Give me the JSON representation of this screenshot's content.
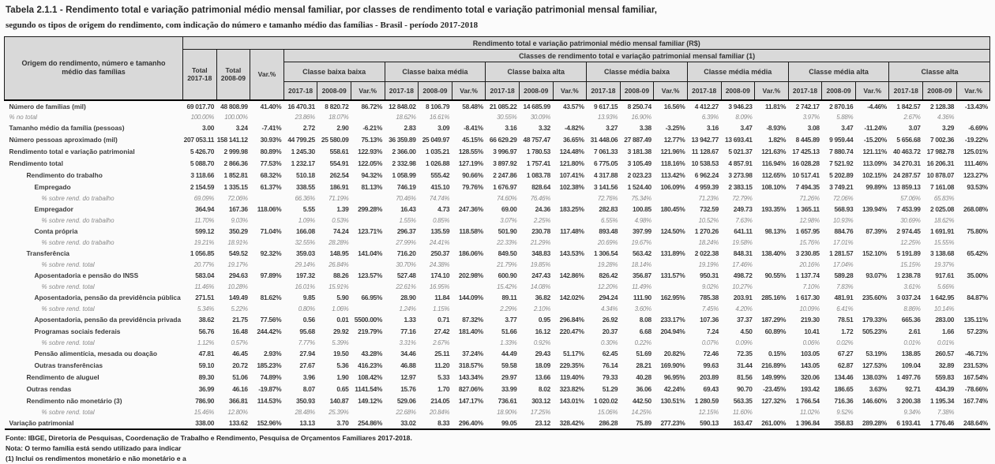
{
  "title": {
    "line1": "Tabela 2.1.1 -  Rendimento total e variação patrimonial médio mensal familiar, por classes de rendimento total e variação patrimonial mensal familiar,",
    "line2": "segundo os tipos de origem do rendimento, com indicação do número e tamanho médio das famílias - Brasil - período 2017-2018"
  },
  "colors": {
    "header_bg": "#d9d9d9",
    "border": "#1a1a1a",
    "main_text": "#3b3b3b",
    "pct_text": "#8a8a8a"
  },
  "table": {
    "corner_label": "Origem do rendimento, número e tamanho médio das famílias",
    "banner1": "Rendimento total e variação patrimonial médio mensal familiar (R$)",
    "banner2": "Classes de rendimento total e variação patrimonial mensal familiar (1)",
    "total_cols": [
      {
        "top": "Total",
        "bottom": "2017-18"
      },
      {
        "top": "Total",
        "bottom": "2008-09"
      },
      {
        "top": "Var.%",
        "bottom": ""
      }
    ],
    "class_groups": [
      "Classe baixa baixa",
      "Classe baixa média",
      "Classe baixa alta",
      "Classe média baixa",
      "Classe média média",
      "Classe média alta",
      "Classe alta"
    ],
    "sub_cols": [
      "2017-18",
      "2008-09",
      "Var.%"
    ],
    "rows": [
      {
        "label": "Número de famílias (mil)",
        "type": "main",
        "indent": 0,
        "values": [
          "69 017.70",
          "48 808.99",
          "41.40%",
          "16 470.31",
          "8 820.72",
          "86.72%",
          "12 848.02",
          "8 106.79",
          "58.48%",
          "21 085.22",
          "14 685.99",
          "43.57%",
          "9 617.15",
          "8 250.74",
          "16.56%",
          "4 412.27",
          "3 946.23",
          "11.81%",
          "2 742.17",
          "2 870.16",
          "-4.46%",
          "1 842.57",
          "2 128.38",
          "-13.43%"
        ]
      },
      {
        "label": "% no total",
        "type": "pct",
        "indent": 0,
        "values": [
          "100.00%",
          "100.00%",
          "",
          "23.86%",
          "18.07%",
          "",
          "18.62%",
          "16.61%",
          "",
          "30.55%",
          "30.09%",
          "",
          "13.93%",
          "16.90%",
          "",
          "6.39%",
          "8.09%",
          "",
          "3.97%",
          "5.88%",
          "",
          "2.67%",
          "4.36%",
          ""
        ]
      },
      {
        "label": "Tamanho médio da família (pessoas)",
        "type": "main",
        "indent": 0,
        "values": [
          "3.00",
          "3.24",
          "-7.41%",
          "2.72",
          "2.90",
          "-6.21%",
          "2.83",
          "3.09",
          "-8.41%",
          "3.16",
          "3.32",
          "-4.82%",
          "3.27",
          "3.38",
          "-3.25%",
          "3.16",
          "3.47",
          "-8.93%",
          "3.08",
          "3.47",
          "-11.24%",
          "3.07",
          "3.29",
          "-6.69%"
        ]
      },
      {
        "label": "Número pessoas aproximado (mil)",
        "type": "main",
        "indent": 0,
        "values": [
          "207 053.11",
          "158 141.12",
          "30.93%",
          "44 799.25",
          "25 580.09",
          "75.13%",
          "36 359.89",
          "25 049.97",
          "45.15%",
          "66 629.29",
          "48 757.47",
          "36.65%",
          "31 448.06",
          "27 887.49",
          "12.77%",
          "13 942.77",
          "13 693.41",
          "1.82%",
          "8 445.89",
          "9 959.44",
          "-15.20%",
          "5 656.68",
          "7 002.36",
          "-19.22%"
        ]
      },
      {
        "label": "Rendimento total e variação patrimonial",
        "type": "main",
        "indent": 0,
        "values": [
          "5 426.70",
          "2 999.98",
          "80.89%",
          "1 245.30",
          "558.61",
          "122.93%",
          "2 366.00",
          "1 035.21",
          "128.55%",
          "3 996.97",
          "1 780.53",
          "124.48%",
          "7 061.33",
          "3 181.38",
          "121.96%",
          "11 128.67",
          "5 021.37",
          "121.63%",
          "17 425.13",
          "7 880.74",
          "121.11%",
          "40 463.72",
          "17 982.78",
          "125.01%"
        ]
      },
      {
        "label": "Rendimento total",
        "type": "main",
        "indent": 0,
        "values": [
          "5 088.70",
          "2 866.36",
          "77.53%",
          "1 232.17",
          "554.91",
          "122.05%",
          "2 332.98",
          "1 026.88",
          "127.19%",
          "3 897.92",
          "1 757.41",
          "121.80%",
          "6 775.05",
          "3 105.49",
          "118.16%",
          "10 538.53",
          "4 857.91",
          "116.94%",
          "16 028.28",
          "7 521.92",
          "113.09%",
          "34 270.31",
          "16 206.31",
          "111.46%"
        ]
      },
      {
        "label": "Rendimento do trabalho",
        "type": "main",
        "indent": 1,
        "values": [
          "3 118.66",
          "1 852.81",
          "68.32%",
          "510.18",
          "262.54",
          "94.32%",
          "1 058.99",
          "555.42",
          "90.66%",
          "2 247.86",
          "1 083.78",
          "107.41%",
          "4 317.88",
          "2 023.23",
          "113.42%",
          "6 962.24",
          "3 273.98",
          "112.65%",
          "10 517.41",
          "5 202.89",
          "102.15%",
          "24 287.57",
          "10 878.07",
          "123.27%"
        ]
      },
      {
        "label": "Empregado",
        "type": "main",
        "indent": 2,
        "values": [
          "2 154.59",
          "1 335.15",
          "61.37%",
          "338.55",
          "186.91",
          "81.13%",
          "746.19",
          "415.10",
          "79.76%",
          "1 676.97",
          "828.64",
          "102.38%",
          "3 141.56",
          "1 524.40",
          "106.09%",
          "4 959.39",
          "2 383.15",
          "108.10%",
          "7 494.35",
          "3 749.21",
          "99.89%",
          "13 859.13",
          "7 161.08",
          "93.53%"
        ]
      },
      {
        "label": "% sobre rend. do trabalho",
        "type": "pct",
        "indent": 3,
        "values": [
          "69.09%",
          "72.06%",
          "",
          "66.36%",
          "71.19%",
          "",
          "70.46%",
          "74.74%",
          "",
          "74.60%",
          "76.46%",
          "",
          "72.76%",
          "75.34%",
          "",
          "71.23%",
          "72.79%",
          "",
          "71.26%",
          "72.06%",
          "",
          "57.06%",
          "65.83%",
          ""
        ]
      },
      {
        "label": "Empregador",
        "type": "main",
        "indent": 2,
        "values": [
          "364.94",
          "167.36",
          "118.06%",
          "5.55",
          "1.39",
          "299.28%",
          "16.43",
          "4.73",
          "247.36%",
          "69.00",
          "24.36",
          "183.25%",
          "282.83",
          "100.85",
          "180.45%",
          "732.59",
          "249.73",
          "193.35%",
          "1 365.11",
          "568.93",
          "139.94%",
          "7 453.99",
          "2 025.08",
          "268.08%"
        ]
      },
      {
        "label": "% sobre rend. do trabalho",
        "type": "pct",
        "indent": 3,
        "values": [
          "11.70%",
          "9.03%",
          "",
          "1.09%",
          "0.53%",
          "",
          "1.55%",
          "0.85%",
          "",
          "3.07%",
          "2.25%",
          "",
          "6.55%",
          "4.98%",
          "",
          "10.52%",
          "7.63%",
          "",
          "12.98%",
          "10.93%",
          "",
          "30.69%",
          "18.62%",
          ""
        ]
      },
      {
        "label": "Conta própria",
        "type": "main",
        "indent": 2,
        "values": [
          "599.12",
          "350.29",
          "71.04%",
          "166.08",
          "74.24",
          "123.71%",
          "296.37",
          "135.59",
          "118.58%",
          "501.90",
          "230.78",
          "117.48%",
          "893.48",
          "397.99",
          "124.50%",
          "1 270.26",
          "641.11",
          "98.13%",
          "1 657.95",
          "884.76",
          "87.39%",
          "2 974.45",
          "1 691.91",
          "75.80%"
        ]
      },
      {
        "label": "% sobre rend. do trabalho",
        "type": "pct",
        "indent": 3,
        "values": [
          "19.21%",
          "18.91%",
          "",
          "32.55%",
          "28.28%",
          "",
          "27.99%",
          "24.41%",
          "",
          "22.33%",
          "21.29%",
          "",
          "20.69%",
          "19.67%",
          "",
          "18.24%",
          "19.58%",
          "",
          "15.76%",
          "17.01%",
          "",
          "12.25%",
          "15.55%",
          ""
        ]
      },
      {
        "label": "Transferência",
        "type": "main",
        "indent": 1,
        "values": [
          "1 056.85",
          "549.52",
          "92.32%",
          "359.03",
          "148.95",
          "141.04%",
          "716.20",
          "250.37",
          "186.06%",
          "849.50",
          "348.83",
          "143.53%",
          "1 306.54",
          "563.42",
          "131.89%",
          "2 022.38",
          "848.31",
          "138.40%",
          "3 230.85",
          "1 281.57",
          "152.10%",
          "5 191.89",
          "3 138.68",
          "65.42%"
        ]
      },
      {
        "label": "% sobre rend. total",
        "type": "pct",
        "indent": 3,
        "values": [
          "20.77%",
          "19.17%",
          "",
          "29.14%",
          "26.84%",
          "",
          "30.70%",
          "24.38%",
          "",
          "21.79%",
          "19.85%",
          "",
          "19.28%",
          "18.14%",
          "",
          "19.19%",
          "17.46%",
          "",
          "20.16%",
          "17.04%",
          "",
          "15.15%",
          "19.37%",
          ""
        ]
      },
      {
        "label": "Aposentadoria e pensão do INSS",
        "type": "main",
        "indent": 2,
        "values": [
          "583.04",
          "294.63",
          "97.89%",
          "197.32",
          "88.26",
          "123.57%",
          "527.48",
          "174.10",
          "202.98%",
          "600.90",
          "247.43",
          "142.86%",
          "826.42",
          "356.87",
          "131.57%",
          "950.31",
          "498.72",
          "90.55%",
          "1 137.74",
          "589.28",
          "93.07%",
          "1 238.78",
          "917.61",
          "35.00%"
        ]
      },
      {
        "label": "% sobre rend. total",
        "type": "pct",
        "indent": 3,
        "values": [
          "11.46%",
          "10.28%",
          "",
          "16.01%",
          "15.91%",
          "",
          "22.61%",
          "16.95%",
          "",
          "15.42%",
          "14.08%",
          "",
          "12.20%",
          "11.49%",
          "",
          "9.02%",
          "10.27%",
          "",
          "7.10%",
          "7.83%",
          "",
          "3.61%",
          "5.66%",
          ""
        ]
      },
      {
        "label": "Aposentadoria, pensão da previdência pública",
        "type": "main",
        "indent": 2,
        "values": [
          "271.51",
          "149.49",
          "81.62%",
          "9.85",
          "5.90",
          "66.95%",
          "28.90",
          "11.84",
          "144.09%",
          "89.11",
          "36.82",
          "142.02%",
          "294.24",
          "111.90",
          "162.95%",
          "785.38",
          "203.91",
          "285.16%",
          "1 617.30",
          "481.91",
          "235.60%",
          "3 037.24",
          "1 642.95",
          "84.87%"
        ]
      },
      {
        "label": "% sobre rend. total",
        "type": "pct",
        "indent": 3,
        "values": [
          "5.34%",
          "5.22%",
          "",
          "0.80%",
          "1.06%",
          "",
          "1.24%",
          "1.15%",
          "",
          "2.29%",
          "2.10%",
          "",
          "4.34%",
          "3.60%",
          "",
          "7.45%",
          "4.20%",
          "",
          "10.09%",
          "6.41%",
          "",
          "8.86%",
          "10.14%",
          ""
        ]
      },
      {
        "label": "Aposentadoria, pensão da previdência privada",
        "type": "main",
        "indent": 2,
        "values": [
          "38.62",
          "21.75",
          "77.56%",
          "0.56",
          "0.01",
          "5500.00%",
          "1.33",
          "0.71",
          "87.32%",
          "3.77",
          "0.95",
          "296.84%",
          "26.92",
          "8.08",
          "233.17%",
          "107.36",
          "37.37",
          "187.29%",
          "219.30",
          "78.51",
          "179.33%",
          "665.36",
          "283.00",
          "135.11%"
        ]
      },
      {
        "label": "Programas sociais federais",
        "type": "main",
        "indent": 2,
        "values": [
          "56.76",
          "16.48",
          "244.42%",
          "95.68",
          "29.92",
          "219.79%",
          "77.16",
          "27.42",
          "181.40%",
          "51.66",
          "16.12",
          "220.47%",
          "20.37",
          "6.68",
          "204.94%",
          "7.24",
          "4.50",
          "60.89%",
          "10.41",
          "1.72",
          "505.23%",
          "2.61",
          "1.66",
          "57.23%"
        ]
      },
      {
        "label": "% sobre rend. total",
        "type": "pct",
        "indent": 3,
        "values": [
          "1.12%",
          "0.57%",
          "",
          "7.77%",
          "5.39%",
          "",
          "3.31%",
          "2.67%",
          "",
          "1.33%",
          "0.92%",
          "",
          "0.30%",
          "0.22%",
          "",
          "0.07%",
          "0.09%",
          "",
          "0.06%",
          "0.02%",
          "",
          "0.01%",
          "0.01%",
          ""
        ]
      },
      {
        "label": "Pensão alimentícia, mesada ou doação",
        "type": "main",
        "indent": 2,
        "values": [
          "47.81",
          "46.45",
          "2.93%",
          "27.94",
          "19.50",
          "43.28%",
          "34.46",
          "25.11",
          "37.24%",
          "44.49",
          "29.43",
          "51.17%",
          "62.45",
          "51.69",
          "20.82%",
          "72.46",
          "72.35",
          "0.15%",
          "103.05",
          "67.27",
          "53.19%",
          "138.85",
          "260.57",
          "-46.71%"
        ]
      },
      {
        "label": "Outras transferências",
        "type": "main",
        "indent": 2,
        "values": [
          "59.10",
          "20.72",
          "185.23%",
          "27.67",
          "5.36",
          "416.23%",
          "46.88",
          "11.20",
          "318.57%",
          "59.58",
          "18.09",
          "229.35%",
          "76.14",
          "28.21",
          "169.90%",
          "99.63",
          "31.44",
          "216.89%",
          "143.05",
          "62.87",
          "127.53%",
          "109.04",
          "32.89",
          "231.53%"
        ]
      },
      {
        "label": "Rendimento de aluguel",
        "type": "main",
        "indent": 1,
        "values": [
          "89.30",
          "51.06",
          "74.89%",
          "3.96",
          "1.90",
          "108.42%",
          "12.97",
          "5.33",
          "143.34%",
          "29.97",
          "13.66",
          "119.40%",
          "79.33",
          "40.28",
          "96.95%",
          "203.89",
          "81.56",
          "149.99%",
          "320.06",
          "134.46",
          "138.03%",
          "1 497.76",
          "559.83",
          "167.54%"
        ]
      },
      {
        "label": "Outras rendas",
        "type": "main",
        "indent": 1,
        "values": [
          "36.99",
          "46.16",
          "-19.87%",
          "8.07",
          "0.65",
          "1141.54%",
          "15.76",
          "1.70",
          "827.06%",
          "33.99",
          "8.02",
          "323.82%",
          "51.29",
          "36.06",
          "42.24%",
          "69.43",
          "90.70",
          "-23.45%",
          "193.42",
          "186.65",
          "3.63%",
          "92.71",
          "434.39",
          "-78.66%"
        ]
      },
      {
        "label": "Rendimento não monetário (3)",
        "type": "main",
        "indent": 1,
        "values": [
          "786.90",
          "366.81",
          "114.53%",
          "350.93",
          "140.87",
          "149.12%",
          "529.06",
          "214.05",
          "147.17%",
          "736.61",
          "303.12",
          "143.01%",
          "1 020.02",
          "442.50",
          "130.51%",
          "1 280.59",
          "563.35",
          "127.32%",
          "1 766.54",
          "716.36",
          "146.60%",
          "3 200.38",
          "1 195.34",
          "167.74%"
        ]
      },
      {
        "label": "% sobre rend. total",
        "type": "pct",
        "indent": 3,
        "values": [
          "15.46%",
          "12.80%",
          "",
          "28.48%",
          "25.39%",
          "",
          "22.68%",
          "20.84%",
          "",
          "18.90%",
          "17.25%",
          "",
          "15.06%",
          "14.25%",
          "",
          "12.15%",
          "11.60%",
          "",
          "11.02%",
          "9.52%",
          "",
          "9.34%",
          "7.38%",
          ""
        ]
      },
      {
        "label": "Variação patrimonial",
        "type": "main",
        "indent": 0,
        "values": [
          "338.00",
          "133.62",
          "152.96%",
          "13.13",
          "3.70",
          "254.86%",
          "33.02",
          "8.33",
          "296.40%",
          "99.05",
          "23.12",
          "328.42%",
          "286.28",
          "75.89",
          "277.23%",
          "590.13",
          "163.47",
          "261.00%",
          "1 396.84",
          "358.83",
          "289.28%",
          "6 193.41",
          "1 776.46",
          "248.64%"
        ]
      }
    ]
  },
  "footer": {
    "fonte": "Fonte: IBGE, Diretoria de Pesquisas, Coordenação de Trabalho e Rendimento, Pesquisa de Orçamentos Familiares 2017-2018.",
    "nota": "Nota: O termo família está sendo utilizado para indicar",
    "note1": "(1) Inclui os rendimentos monetário e não monetário e a"
  }
}
